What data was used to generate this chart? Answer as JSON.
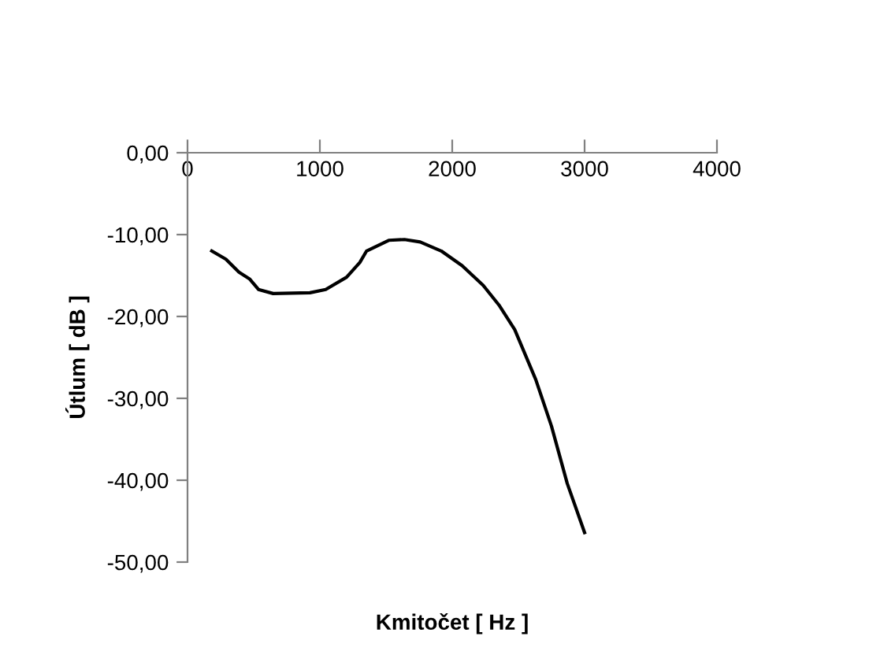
{
  "chart_data": {
    "type": "line",
    "xlabel": "Kmitočet [ Hz ]",
    "ylabel": "Útlum [ dB ]",
    "x": [
      183,
      290,
      389,
      468,
      536,
      647,
      925,
      1044,
      1202,
      1302,
      1353,
      1520,
      1639,
      1758,
      1917,
      2075,
      2234,
      2353,
      2472,
      2631,
      2750,
      2869,
      3000
    ],
    "series": [
      {
        "color": "#000000",
        "values": [
          -12.0,
          -13.0,
          -14.6,
          -15.4,
          -16.7,
          -17.2,
          -17.1,
          -16.7,
          -15.2,
          -13.4,
          -12.0,
          -10.7,
          -10.6,
          -10.9,
          -12.0,
          -13.8,
          -16.2,
          -18.6,
          -21.6,
          -27.7,
          -33.4,
          -40.4,
          -46.4
        ]
      }
    ],
    "xlim": [
      0,
      4000
    ],
    "xticks": [
      0,
      1000,
      2000,
      3000,
      4000
    ],
    "ylim": [
      -50,
      0
    ],
    "yticks": [
      {
        "value": -50,
        "label": "-50,00"
      },
      {
        "value": -40,
        "label": "-40,00"
      },
      {
        "value": -30,
        "label": "-30,00"
      },
      {
        "value": -20,
        "label": "-20,00"
      },
      {
        "value": -10,
        "label": "-10,00"
      },
      {
        "value": 0,
        "label": "0,00"
      }
    ],
    "grid": false,
    "legend": false,
    "marker": "none",
    "line_style": "solid"
  }
}
